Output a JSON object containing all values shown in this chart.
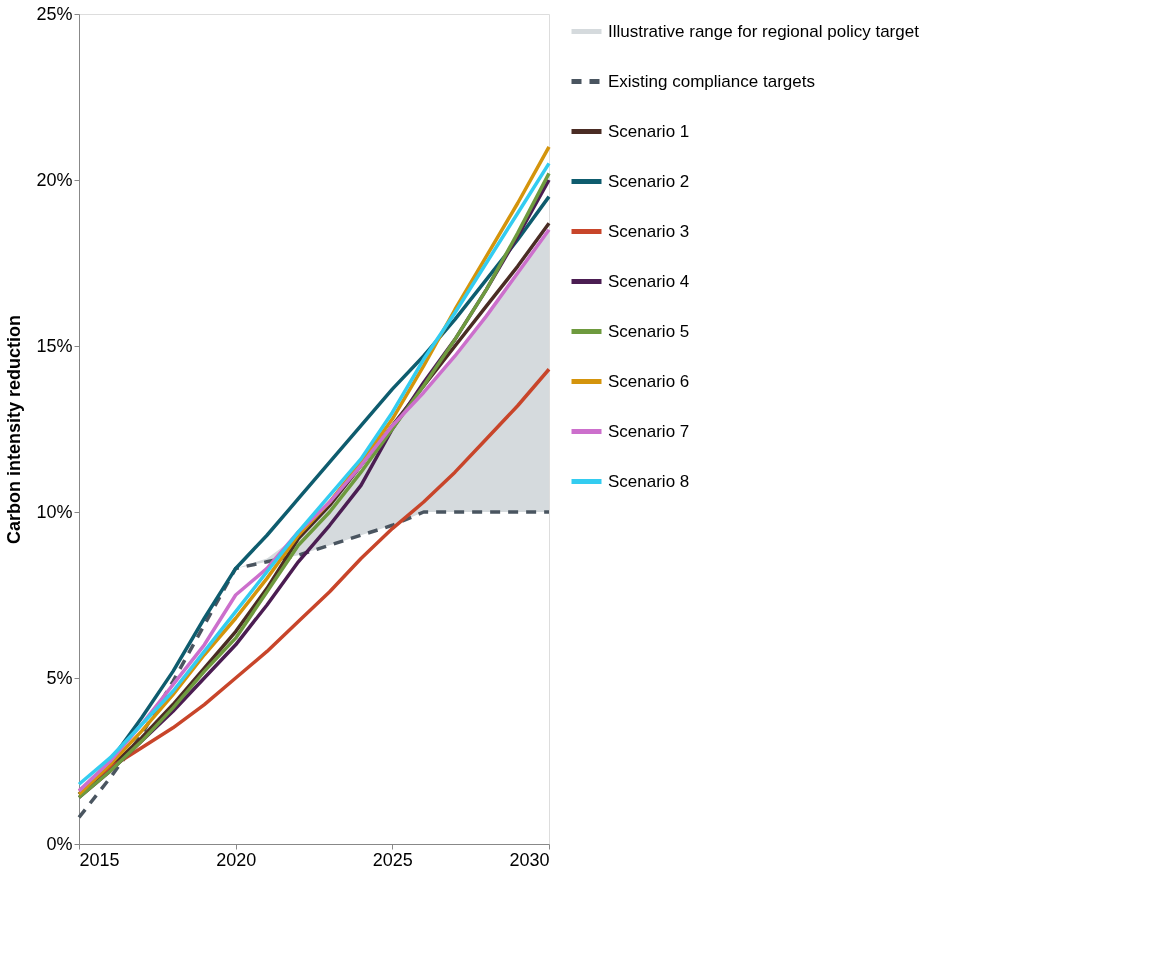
{
  "chart_data": {
    "type": "line",
    "ylabel": "Carbon intensity reduction",
    "x": [
      2015,
      2016,
      2017,
      2018,
      2019,
      2020,
      2021,
      2022,
      2023,
      2024,
      2025,
      2026,
      2027,
      2028,
      2029,
      2030
    ],
    "xlim": [
      2015,
      2030
    ],
    "xticks": [
      2015,
      2020,
      2025,
      2030
    ],
    "ylim": [
      0,
      25
    ],
    "yticks": [
      {
        "value": 0,
        "label": "0%"
      },
      {
        "value": 5,
        "label": "5%"
      },
      {
        "value": 10,
        "label": "10%"
      },
      {
        "value": 15,
        "label": "15%"
      },
      {
        "value": 20,
        "label": "20%"
      },
      {
        "value": 25,
        "label": "25%"
      }
    ],
    "grid": false,
    "legend": "right",
    "marker": "none",
    "annotations": [
      "Illustrative range for regional policy target"
    ],
    "series": [
      {
        "name": "Existing compliance targets",
        "line_style": "dashed",
        "color": "#4a5560",
        "values": [
          0.8,
          2.0,
          3.3,
          4.9,
          6.6,
          8.3,
          8.5,
          8.7,
          9.0,
          9.3,
          9.6,
          10,
          10,
          10,
          10,
          10
        ],
        "lower": [
          null,
          null,
          null,
          null,
          null,
          8.3,
          8.5,
          8.7,
          9.0,
          9.3,
          9.6,
          10,
          10,
          10,
          10,
          10
        ],
        "upper": [
          null,
          null,
          null,
          null,
          null,
          8.3,
          8.6,
          9.3,
          10.2,
          11.3,
          12.5,
          13.6,
          14.7,
          15.9,
          17.2,
          18.5
        ]
      },
      {
        "name": "Scenario 1",
        "color": "#4a2c24",
        "values": [
          1.5,
          2.3,
          3.2,
          4.2,
          5.3,
          6.4,
          7.7,
          9.2,
          10.2,
          11.4,
          12.6,
          13.8,
          15.0,
          16.2,
          17.4,
          18.7
        ]
      },
      {
        "name": "Scenario 2",
        "color": "#0e5c6e",
        "values": [
          1.5,
          2.5,
          3.8,
          5.2,
          6.8,
          8.3,
          9.3,
          10.4,
          11.5,
          12.6,
          13.7,
          14.7,
          15.8,
          17.0,
          18.2,
          19.5
        ]
      },
      {
        "name": "Scenario 3",
        "color": "#c8452a",
        "values": [
          1.6,
          2.3,
          2.9,
          3.5,
          4.2,
          5.0,
          5.8,
          6.7,
          7.6,
          8.6,
          9.5,
          10.3,
          11.2,
          12.2,
          13.2,
          14.3
        ]
      },
      {
        "name": "Scenario 4",
        "color": "#4b1d52",
        "values": [
          1.4,
          2.2,
          3.1,
          4.0,
          5.0,
          6.0,
          7.2,
          8.5,
          9.6,
          10.8,
          12.5,
          13.9,
          15.2,
          16.7,
          18.3,
          20.0
        ]
      },
      {
        "name": "Scenario 5",
        "color": "#6e9a3e",
        "values": [
          1.4,
          2.2,
          3.1,
          4.1,
          5.2,
          6.2,
          7.6,
          9.0,
          10.0,
          11.2,
          12.5,
          13.8,
          15.2,
          16.7,
          18.4,
          20.2
        ]
      },
      {
        "name": "Scenario 6",
        "color": "#d4940c",
        "values": [
          1.5,
          2.4,
          3.4,
          4.5,
          5.7,
          6.8,
          8.0,
          9.3,
          10.3,
          11.5,
          12.8,
          14.4,
          16.1,
          17.7,
          19.3,
          21.0
        ]
      },
      {
        "name": "Scenario 7",
        "color": "#cc6fcc",
        "values": [
          1.6,
          2.5,
          3.6,
          4.8,
          6.0,
          7.5,
          8.3,
          9.4,
          10.3,
          11.4,
          12.6,
          13.6,
          14.7,
          15.9,
          17.2,
          18.5
        ]
      },
      {
        "name": "Scenario 8",
        "color": "#33ccf0",
        "values": [
          1.8,
          2.6,
          3.6,
          4.6,
          5.8,
          7.0,
          8.2,
          9.4,
          10.5,
          11.6,
          13.0,
          14.6,
          16.0,
          17.5,
          19.0,
          20.5
        ]
      }
    ]
  }
}
